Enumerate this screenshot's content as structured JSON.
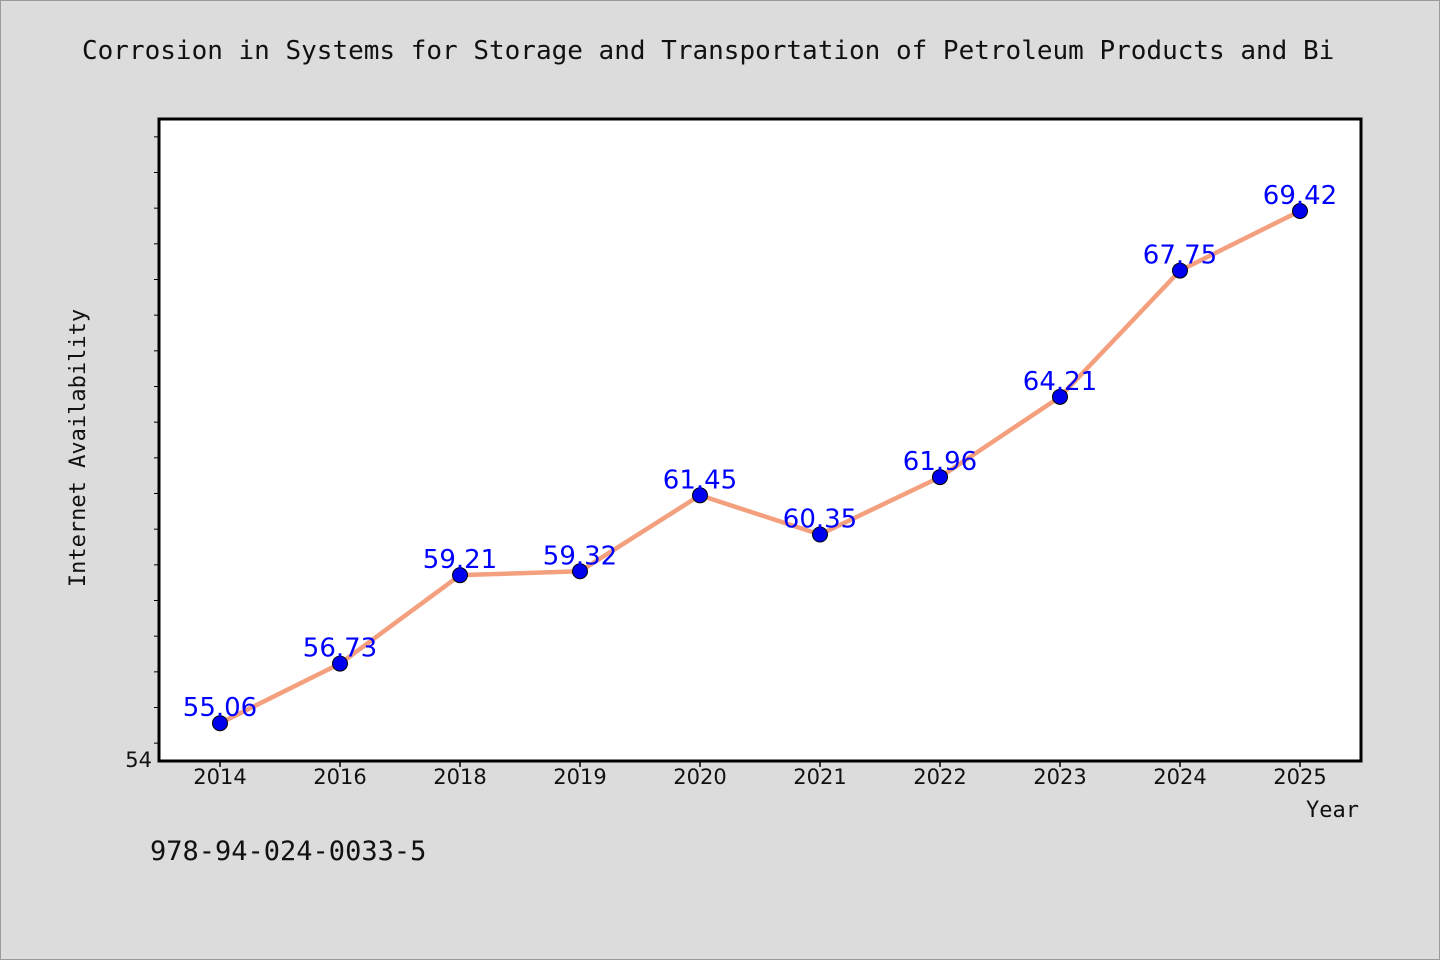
{
  "chart_data": {
    "type": "line",
    "title": "Corrosion in Systems for Storage and Transportation of Petroleum Products and Bi",
    "xlabel": "Year",
    "ylabel": "Internet Availability",
    "categories": [
      "2014",
      "2016",
      "2018",
      "2019",
      "2020",
      "2021",
      "2022",
      "2023",
      "2024",
      "2025"
    ],
    "series": [
      {
        "values": [
          55.06,
          56.73,
          59.21,
          59.32,
          61.45,
          60.35,
          61.96,
          64.21,
          67.75,
          69.42
        ],
        "labels": [
          "55.06",
          "56.73",
          "59.21",
          "59.32",
          "61.45",
          "60.35",
          "61.96",
          "64.21",
          "67.75",
          "69.42"
        ],
        "line_color": "#f4a07e",
        "marker_color": "#0000ee",
        "label_color": "#0000ff"
      }
    ],
    "ylim": [
      54,
      72
    ],
    "y_tick_labels": [
      "54"
    ],
    "grid": false,
    "legend": "none"
  },
  "footer": {
    "isbn": "978-94-024-0033-5"
  },
  "colors": {
    "background": "#dcdcdc",
    "plot_background": "#ffffff"
  }
}
